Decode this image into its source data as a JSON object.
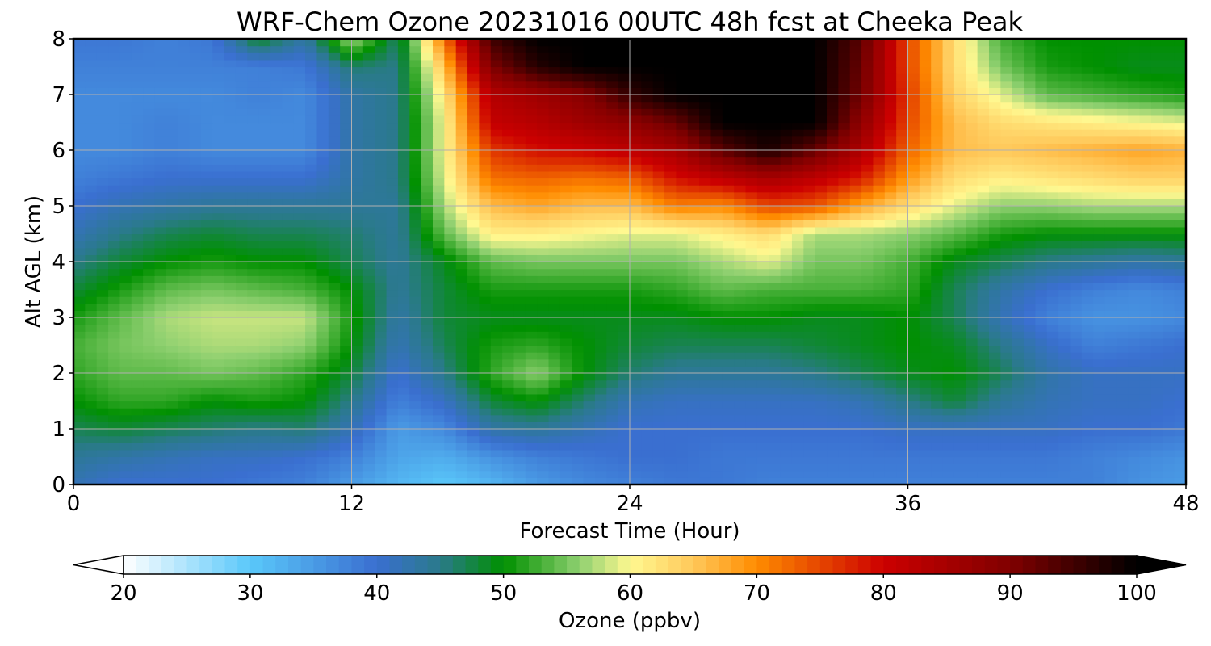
{
  "chart_data": {
    "type": "heatmap",
    "title": "WRF-Chem Ozone  20231016 00UTC 48h fcst at Cheeka Peak",
    "xlabel": "Forecast Time (Hour)",
    "ylabel": "Alt AGL (km)",
    "xlim": [
      0,
      48
    ],
    "ylim": [
      0,
      8
    ],
    "x_ticks": [
      0,
      12,
      24,
      36,
      48
    ],
    "y_ticks": [
      0,
      1,
      2,
      3,
      4,
      5,
      6,
      7,
      8
    ],
    "grid": true,
    "colorbar": {
      "label": "Ozone  (ppbv)",
      "min": 20,
      "max": 100,
      "ticks": [
        20,
        30,
        40,
        50,
        60,
        70,
        80,
        90,
        100
      ],
      "extend": "both",
      "stops": [
        {
          "v": 20,
          "c": "#ffffff"
        },
        {
          "v": 30,
          "c": "#5ac8fa"
        },
        {
          "v": 40,
          "c": "#3a6fd0"
        },
        {
          "v": 45,
          "c": "#2a7a8a"
        },
        {
          "v": 50,
          "c": "#009000"
        },
        {
          "v": 56,
          "c": "#8fd070"
        },
        {
          "v": 60,
          "c": "#fff890"
        },
        {
          "v": 65,
          "c": "#ffc85a"
        },
        {
          "v": 70,
          "c": "#ff8c00"
        },
        {
          "v": 80,
          "c": "#cc0000"
        },
        {
          "v": 90,
          "c": "#800000"
        },
        {
          "v": 100,
          "c": "#000000"
        }
      ]
    },
    "times": [
      0,
      2,
      4,
      6,
      8,
      10,
      12,
      14,
      16,
      18,
      20,
      22,
      24,
      26,
      28,
      30,
      32,
      34,
      36,
      38,
      40,
      42,
      44,
      46,
      48
    ],
    "altitudes": [
      0,
      0.5,
      1,
      1.5,
      2,
      2.5,
      3,
      3.5,
      4,
      4.5,
      5,
      5.5,
      6,
      6.5,
      7,
      7.5,
      8
    ],
    "values_by_altitude": [
      [
        42,
        40,
        40,
        40,
        39,
        38,
        35,
        32,
        30,
        32,
        35,
        37,
        38,
        39,
        39,
        38,
        38,
        38,
        38,
        38,
        38,
        38,
        38,
        36,
        35
      ],
      [
        44,
        43,
        42,
        41,
        41,
        40,
        38,
        34,
        33,
        36,
        38,
        39,
        40,
        40,
        39,
        39,
        39,
        39,
        39,
        39,
        39,
        39,
        38,
        37,
        36
      ],
      [
        47,
        48,
        47,
        46,
        45,
        46,
        42,
        35,
        37,
        43,
        44,
        42,
        40,
        40,
        40,
        40,
        40,
        40,
        41,
        41,
        41,
        41,
        40,
        40,
        39
      ],
      [
        50,
        52,
        52,
        50,
        51,
        50,
        45,
        38,
        41,
        48,
        50,
        46,
        42,
        41,
        41,
        41,
        41,
        42,
        45,
        48,
        44,
        42,
        41,
        41,
        40
      ],
      [
        52,
        54,
        54,
        55,
        54,
        52,
        48,
        40,
        45,
        52,
        56,
        50,
        46,
        44,
        44,
        44,
        45,
        47,
        49,
        50,
        47,
        43,
        41,
        41,
        41
      ],
      [
        53,
        55,
        56,
        57,
        57,
        56,
        50,
        42,
        47,
        51,
        52,
        50,
        48,
        47,
        47,
        47,
        48,
        49,
        50,
        49,
        45,
        41,
        38,
        39,
        40
      ],
      [
        51,
        54,
        57,
        58,
        58,
        58,
        51,
        43,
        48,
        49,
        49,
        49,
        49,
        49,
        50,
        50,
        49,
        49,
        50,
        47,
        42,
        38,
        36,
        36,
        37
      ],
      [
        48,
        51,
        54,
        55,
        54,
        53,
        50,
        44,
        48,
        51,
        51,
        51,
        51,
        52,
        54,
        53,
        53,
        53,
        52,
        47,
        43,
        40,
        38,
        37,
        38
      ],
      [
        45,
        48,
        50,
        51,
        50,
        50,
        47,
        44,
        49,
        54,
        55,
        55,
        55,
        55,
        57,
        59,
        55,
        55,
        53,
        49,
        47,
        45,
        44,
        43,
        44
      ],
      [
        42,
        45,
        47,
        48,
        47,
        47,
        46,
        44,
        54,
        61,
        61,
        60,
        59,
        59,
        61,
        63,
        57,
        57,
        56,
        54,
        51,
        50,
        50,
        50,
        50
      ],
      [
        40,
        42,
        43,
        44,
        44,
        44,
        44,
        44,
        57,
        66,
        68,
        66,
        66,
        71,
        70,
        75,
        74,
        68,
        63,
        59,
        56,
        56,
        57,
        57,
        57
      ],
      [
        38,
        39,
        40,
        40,
        40,
        40,
        43,
        45,
        59,
        72,
        73,
        72,
        73,
        79,
        82,
        85,
        82,
        78,
        69,
        63,
        61,
        62,
        63,
        64,
        64
      ],
      [
        37,
        37,
        38,
        37,
        37,
        37,
        43,
        45,
        60,
        76,
        79,
        80,
        82,
        85,
        93,
        98,
        92,
        84,
        73,
        66,
        65,
        66,
        67,
        68,
        67
      ],
      [
        37,
        37,
        38,
        37,
        37,
        37,
        43,
        45,
        60,
        81,
        83,
        86,
        88,
        92,
        100,
        100,
        100,
        88,
        75,
        66,
        63,
        62,
        61,
        60,
        59
      ],
      [
        37,
        37,
        37,
        37,
        38,
        37,
        43,
        45,
        62,
        83,
        86,
        89,
        96,
        100,
        100,
        100,
        100,
        91,
        76,
        64,
        59,
        54,
        53,
        52,
        51
      ],
      [
        38,
        38,
        38,
        38,
        38,
        39,
        46,
        45,
        66,
        90,
        97,
        100,
        100,
        100,
        100,
        100,
        100,
        92,
        75,
        63,
        55,
        51,
        50,
        49,
        49
      ],
      [
        39,
        39,
        38,
        39,
        49,
        43,
        57,
        46,
        72,
        95,
        100,
        100,
        100,
        100,
        100,
        100,
        100,
        93,
        75,
        63,
        53,
        50,
        50,
        50,
        50
      ]
    ]
  }
}
